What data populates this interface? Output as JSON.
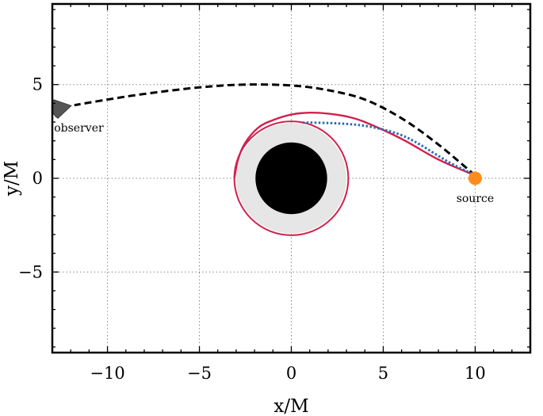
{
  "chart_data": {
    "type": "line",
    "xlabel": "x/M",
    "ylabel": "y/M",
    "xlim": [
      -13,
      13
    ],
    "ylim": [
      -9.3,
      9.3
    ],
    "xticks": [
      -10,
      -5,
      0,
      5,
      10
    ],
    "yticks": [
      -5,
      0,
      5
    ],
    "xtick_labels": [
      "−10",
      "−5",
      "0",
      "5",
      "10"
    ],
    "ytick_labels": [
      "−5",
      "0",
      "5"
    ],
    "grid": true,
    "grid_style": "dotted",
    "annotations": [
      {
        "name": "observer",
        "text": "observer",
        "x": -12.3,
        "y": 3.8
      },
      {
        "name": "source",
        "text": "source",
        "x": 10,
        "y": 0
      }
    ],
    "black_hole": {
      "center": [
        0,
        0
      ],
      "horizon_radius": 1.95,
      "photon_region_radius": 3.0
    },
    "photon_ring": {
      "center": [
        0,
        0
      ],
      "radius": 3.1
    },
    "series": [
      {
        "style": "dashed",
        "color": "#000000",
        "x": [
          10,
          8,
          6,
          4,
          2,
          0,
          -2.5,
          -5,
          -8,
          -10,
          -11.8
        ],
        "y": [
          0.15,
          1.8,
          3.2,
          4.2,
          4.7,
          4.95,
          5.0,
          4.85,
          4.5,
          4.2,
          3.9
        ]
      },
      {
        "style": "solid",
        "color": "#d0204e",
        "x": [
          10,
          8,
          6,
          4,
          3,
          2,
          1,
          0,
          -1,
          -1.8,
          -2.5,
          -2.9,
          -3.1
        ],
        "y": [
          0.15,
          1.0,
          2.1,
          3.0,
          3.3,
          3.45,
          3.5,
          3.4,
          3.1,
          2.7,
          1.9,
          1.0,
          0
        ],
        "ring_radius": 3.1
      },
      {
        "style": "dotted",
        "color": "#2a6db0",
        "x": [
          10,
          8.5,
          7,
          6,
          5,
          4,
          3,
          2,
          1,
          0.5
        ],
        "y": [
          0.15,
          0.9,
          1.8,
          2.3,
          2.6,
          2.8,
          2.9,
          2.95,
          2.97,
          2.97
        ]
      }
    ],
    "colors": {
      "frame": "#000000",
      "grid": "#6f6f6f",
      "horizon": "#000000",
      "photon_region": "#e6e6e6",
      "source": "#ff8c1a",
      "observer": "#555555"
    }
  }
}
